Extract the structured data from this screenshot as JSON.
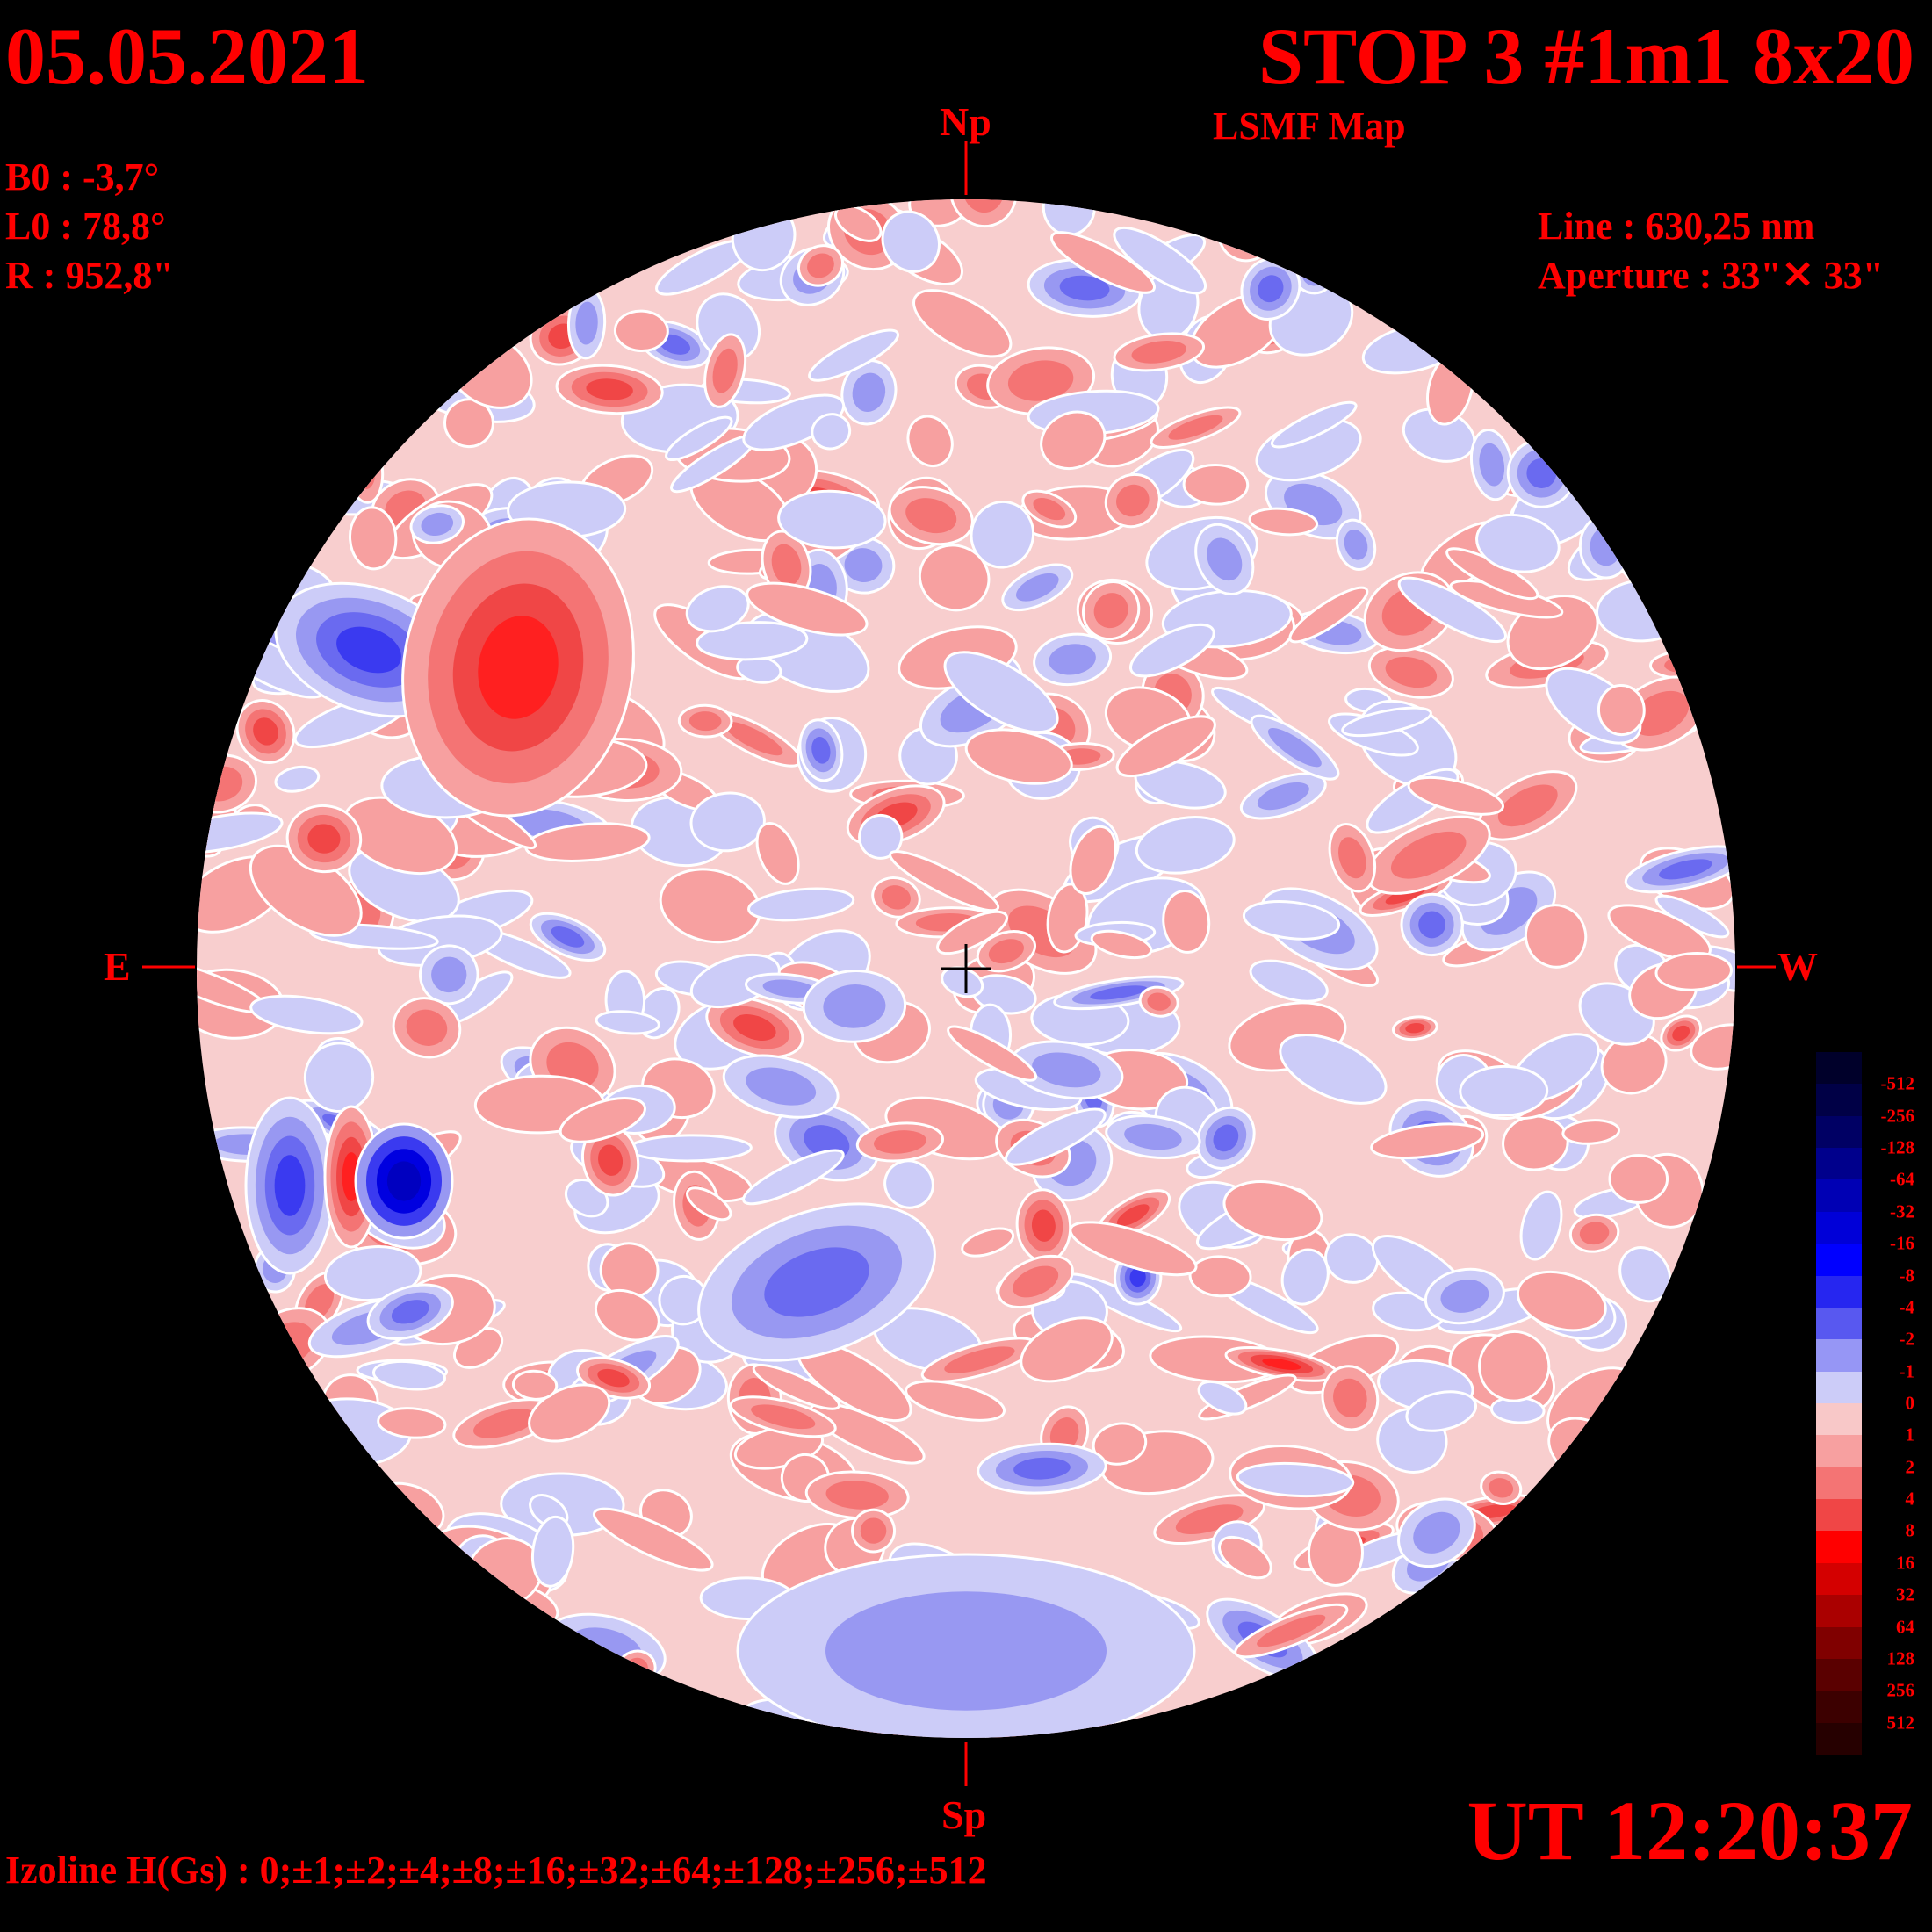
{
  "header": {
    "date": "05.05.2021",
    "title": "STOP 3 #1m1 8x20",
    "subtitle": "LSMF  Map"
  },
  "parameters": {
    "b0": "B0 : -3,7°",
    "l0": "L0 : 78,8°",
    "r": "R  : 952,8\""
  },
  "instrument": {
    "line": "Line :  630,25 nm",
    "aperture": "Aperture : 33\"✕ 33\""
  },
  "compass": {
    "north": "Np",
    "south": "Sp",
    "east": "E",
    "west": "W"
  },
  "time": "UT 12:20:37",
  "izoline": "Izoline H(Gs) : 0;±1;±2;±4;±8;±16;±32;±64;±128;±256;±512",
  "colorbar": {
    "labels": [
      "-512",
      "-256",
      "-128",
      "-64",
      "-32",
      "-16",
      "-8",
      "-4",
      "-2",
      "-1",
      "0",
      "1",
      "2",
      "4",
      "8",
      "16",
      "32",
      "64",
      "128",
      "256",
      "512"
    ],
    "colors": [
      "#00002a",
      "#000046",
      "#000064",
      "#00008c",
      "#0000b4",
      "#0000d8",
      "#0000ff",
      "#2626f0",
      "#5858f0",
      "#9696f5",
      "#ccccf8",
      "#f8c8c8",
      "#f7a0a0",
      "#f47474",
      "#f04646",
      "#ff0000",
      "#d40000",
      "#aa0000",
      "#800000",
      "#5a0000",
      "#3c0000",
      "#260000"
    ]
  }
}
